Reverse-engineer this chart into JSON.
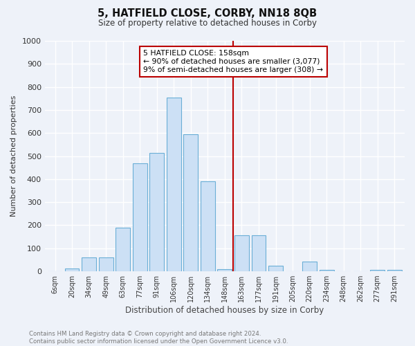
{
  "title": "5, HATFIELD CLOSE, CORBY, NN18 8QB",
  "subtitle": "Size of property relative to detached houses in Corby",
  "xlabel": "Distribution of detached houses by size in Corby",
  "ylabel": "Number of detached properties",
  "categories": [
    "6sqm",
    "20sqm",
    "34sqm",
    "49sqm",
    "63sqm",
    "77sqm",
    "91sqm",
    "106sqm",
    "120sqm",
    "134sqm",
    "148sqm",
    "163sqm",
    "177sqm",
    "191sqm",
    "205sqm",
    "220sqm",
    "234sqm",
    "248sqm",
    "262sqm",
    "277sqm",
    "291sqm"
  ],
  "values": [
    0,
    13,
    60,
    60,
    190,
    470,
    515,
    755,
    595,
    390,
    10,
    155,
    155,
    25,
    0,
    42,
    5,
    0,
    0,
    5,
    5
  ],
  "bar_color": "#cce0f5",
  "bar_edge_color": "#6aaed6",
  "background_color": "#eef2f9",
  "grid_color": "#ffffff",
  "annotation_line1": "5 HATFIELD CLOSE: 158sqm",
  "annotation_line2": "← 90% of detached houses are smaller (3,077)",
  "annotation_line3": "9% of semi-detached houses are larger (308) →",
  "vline_color": "#bb0000",
  "annotation_box_color": "#bb0000",
  "footer_text": "Contains HM Land Registry data © Crown copyright and database right 2024.\nContains public sector information licensed under the Open Government Licence v3.0.",
  "ylim": [
    0,
    1000
  ],
  "yticks": [
    0,
    100,
    200,
    300,
    400,
    500,
    600,
    700,
    800,
    900,
    1000
  ]
}
